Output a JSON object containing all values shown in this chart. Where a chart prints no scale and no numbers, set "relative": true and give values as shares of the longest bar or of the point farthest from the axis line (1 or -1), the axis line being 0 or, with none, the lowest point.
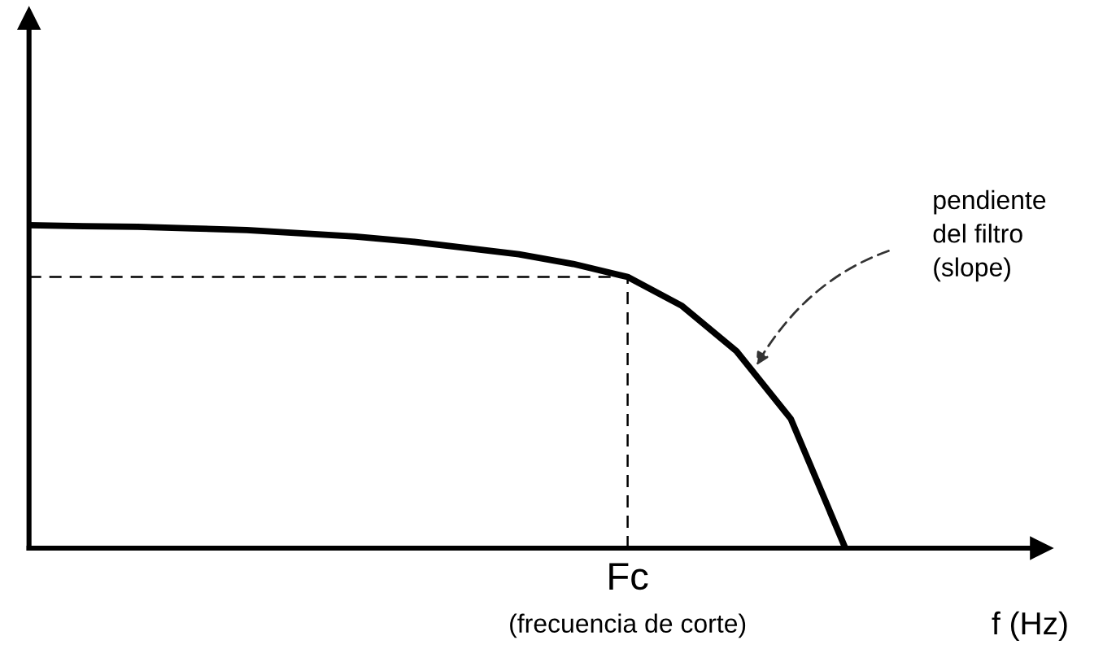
{
  "chart_data": {
    "type": "line",
    "relative": true,
    "xlabel": "f (Hz)",
    "categories": [
      null,
      null,
      null,
      null,
      null,
      null,
      null,
      null,
      null,
      null,
      null,
      null,
      null,
      null,
      null,
      null
    ],
    "series": [
      {
        "color": "#000000",
        "values": [
          1.0,
          0.997,
          0.995,
          0.99,
          0.985,
          0.975,
          0.965,
          0.95,
          0.93,
          0.91,
          0.88,
          0.84,
          0.75,
          0.61,
          0.4,
          0.0
        ]
      }
    ],
    "ref_lines": [
      {
        "axis": "y",
        "value": 0.84,
        "line_style": "dashed",
        "color": "#000000"
      }
    ],
    "annotations": [
      {
        "text": "Fc",
        "y": 0.84
      },
      "(frecuencia de corte)",
      "pendiente\ndel filtro\n(slope)"
    ],
    "marker": "none",
    "line_style": "solid"
  }
}
